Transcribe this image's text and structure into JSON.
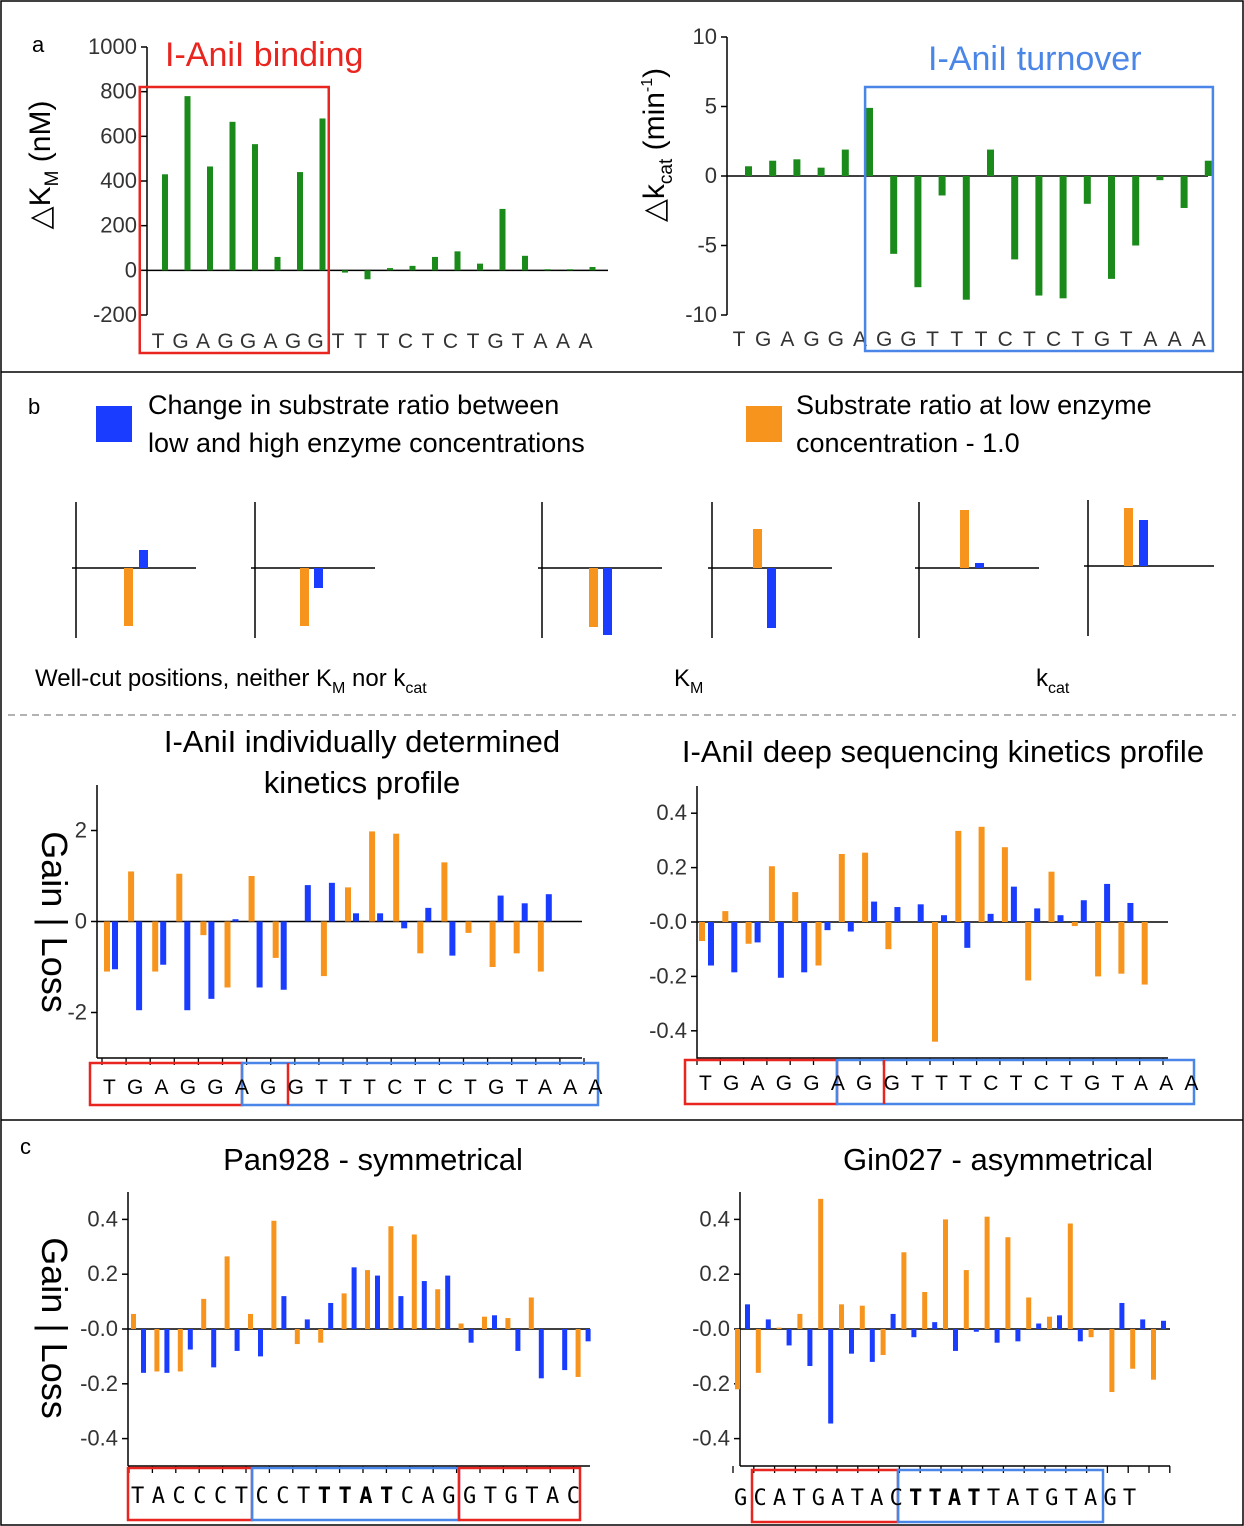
{
  "panel_labels": {
    "a": "a",
    "b": "b",
    "c": "c"
  },
  "colors": {
    "green": "#1a8a1a",
    "orange": "#f7941d",
    "blue": "#1a3cff",
    "red_box": "#e8251f",
    "blue_box": "#4a86e8",
    "title_red": "#e8251f",
    "title_blue": "#4a86e8",
    "divider": "#999999"
  },
  "legend": {
    "blue_line1": "Change in substrate ratio between",
    "blue_line2": "low and high enzyme concentrations",
    "orange_line1": "Substrate ratio at low enzyme",
    "orange_line2": "concentration - 1.0"
  },
  "schematic_labels": {
    "wellcut_main": "Well-cut positions, neither K",
    "wellcut_sub1": "M",
    "wellcut_mid": " nor k",
    "wellcut_sub2": "cat",
    "km_main": "K",
    "km_sub": "M",
    "kcat_main": "k",
    "kcat_sub": "cat"
  },
  "gain_loss_label": "Gain | Loss",
  "chart_data": [
    {
      "id": "a-left",
      "type": "bar",
      "title": "I-AniI binding",
      "ylabel_pre": "△K",
      "ylabel_sub": "M",
      "ylabel_post": " (nM)",
      "ylim": [
        -200,
        1000
      ],
      "yticks": [
        "-200",
        "0",
        "200",
        "400",
        "600",
        "800",
        "1000"
      ],
      "categories": [
        "T",
        "G",
        "A",
        "G",
        "G",
        "A",
        "G",
        "G",
        "T",
        "T",
        "T",
        "C",
        "T",
        "C",
        "T",
        "G",
        "T",
        "A",
        "A",
        "A"
      ],
      "values": [
        430,
        780,
        465,
        665,
        565,
        60,
        440,
        680,
        -10,
        -40,
        10,
        20,
        60,
        85,
        30,
        275,
        65,
        5,
        5,
        15
      ],
      "box": {
        "from": 0,
        "to": 7,
        "color": "red"
      }
    },
    {
      "id": "a-right",
      "type": "bar",
      "title": "I-AniI turnover",
      "ylabel_pre": "△k",
      "ylabel_sub": "cat",
      "ylabel_post": " (min",
      "ylabel_sup": "-1",
      "ylabel_end": ")",
      "ylim": [
        -10,
        10
      ],
      "yticks": [
        "-10",
        "-5",
        "0",
        "5",
        "10"
      ],
      "categories": [
        "T",
        "G",
        "A",
        "G",
        "G",
        "A",
        "G",
        "G",
        "T",
        "T",
        "T",
        "C",
        "T",
        "C",
        "T",
        "G",
        "T",
        "A",
        "A",
        "A"
      ],
      "values": [
        0.7,
        1.1,
        1.2,
        0.6,
        1.9,
        4.9,
        -5.6,
        -8.0,
        -1.4,
        -8.9,
        1.9,
        -6.0,
        -8.6,
        -8.8,
        -2.0,
        -7.4,
        -5.0,
        -0.3,
        -2.3,
        1.1
      ],
      "box": {
        "from": 6,
        "to": 19,
        "color": "blue"
      }
    },
    {
      "id": "b-individual",
      "type": "bar",
      "title_line1": "I-AniI individually determined",
      "title_line2": "kinetics profile",
      "ylim": [
        -3,
        3
      ],
      "yticks": [
        "-2",
        "0",
        "2"
      ],
      "categories": [
        "T",
        "G",
        "A",
        "G",
        "G",
        "A",
        "G",
        "G",
        "T",
        "T",
        "T",
        "C",
        "T",
        "C",
        "T",
        "G",
        "T",
        "A",
        "A",
        "A"
      ],
      "series": [
        {
          "name": "Substrate ratio at low enzyme concentration - 1.0",
          "color": "orange",
          "values": [
            -1.1,
            1.1,
            -1.1,
            1.05,
            -0.3,
            -1.45,
            1.0,
            -0.8,
            0,
            -1.2,
            0.75,
            1.98,
            1.93,
            -0.7,
            1.3,
            -0.25,
            -1.0,
            -0.7,
            -1.1,
            0
          ]
        },
        {
          "name": "Change in substrate ratio between low and high enzyme concentrations",
          "color": "blue",
          "values": [
            -1.05,
            -1.95,
            -0.95,
            -1.95,
            -1.7,
            0.05,
            -1.45,
            -1.5,
            0.8,
            0.85,
            0.18,
            0.18,
            -0.15,
            0.3,
            -0.75,
            0,
            0.57,
            0.4,
            0.6,
            0
          ]
        }
      ],
      "seq_left": "TGAGGA",
      "seq_mid": "GG",
      "seq_right": "TTTCTCTGTAAA"
    },
    {
      "id": "b-deep",
      "type": "bar",
      "title": "I-AniI deep sequencing kinetics profile",
      "ylim": [
        -0.5,
        0.5
      ],
      "yticks": [
        "-0.4",
        "-0.2",
        "-0.0",
        "0.2",
        "0.4"
      ],
      "categories": [
        "T",
        "G",
        "A",
        "G",
        "G",
        "A",
        "G",
        "G",
        "T",
        "T",
        "T",
        "C",
        "T",
        "C",
        "T",
        "G",
        "T",
        "A",
        "A",
        "A"
      ],
      "series": [
        {
          "name": "Substrate ratio at low enzyme concentration - 1.0",
          "color": "orange",
          "values": [
            -0.07,
            0.04,
            -0.08,
            0.205,
            0.11,
            -0.16,
            0.25,
            0.255,
            -0.1,
            0,
            -0.44,
            0.335,
            0.35,
            0.275,
            -0.215,
            0.185,
            -0.015,
            -0.2,
            -0.19,
            -0.23
          ]
        },
        {
          "name": "Change in substrate ratio between low and high enzyme concentrations",
          "color": "blue",
          "values": [
            -0.16,
            -0.185,
            -0.075,
            -0.205,
            -0.185,
            -0.03,
            -0.035,
            0.075,
            0.055,
            0.065,
            0.025,
            -0.095,
            0.03,
            0.13,
            0.05,
            0.025,
            0.08,
            0.14,
            0.07,
            0
          ]
        }
      ],
      "seq_left": "TGAGGA",
      "seq_mid": "GG",
      "seq_right": "TTTCTCTGTAAA"
    },
    {
      "id": "c-pan928",
      "type": "bar",
      "title": "Pan928 - symmetrical",
      "ylim": [
        -0.5,
        0.5
      ],
      "yticks": [
        "-0.4",
        "-0.2",
        "-0.0",
        "0.2",
        "0.4"
      ],
      "series": [
        {
          "name": "Substrate ratio at low enzyme concentration - 1.0",
          "color": "orange",
          "values": [
            0.055,
            -0.155,
            -0.155,
            0.11,
            0.265,
            0.055,
            0.395,
            -0.055,
            -0.05,
            0.13,
            0.215,
            0.375,
            0.345,
            0.145,
            0.02,
            0.045,
            0.04,
            0.115,
            0,
            -0.175
          ]
        },
        {
          "name": "Change in substrate ratio between low and high enzyme concentrations",
          "color": "blue",
          "values": [
            -0.16,
            -0.16,
            -0.075,
            -0.14,
            -0.08,
            -0.1,
            0.12,
            0.035,
            0.095,
            0.225,
            0.195,
            0.12,
            0.175,
            0.195,
            -0.05,
            0.05,
            -0.08,
            -0.18,
            -0.15,
            -0.045
          ]
        }
      ],
      "seq_a": "TACCCT",
      "seq_b": "CCT",
      "seq_bold": "TTAT",
      "seq_c": "CAG",
      "seq_d": "GTGTAC"
    },
    {
      "id": "c-gin027",
      "type": "bar",
      "title": "Gin027 - asymmetrical",
      "ylim": [
        -0.5,
        0.5
      ],
      "yticks": [
        "-0.4",
        "-0.2",
        "-0.0",
        "0.2",
        "0.4"
      ],
      "series": [
        {
          "name": "Substrate ratio at low enzyme concentration - 1.0",
          "color": "orange",
          "values": [
            -0.22,
            -0.16,
            0.005,
            0.055,
            0.475,
            0.09,
            0.085,
            -0.095,
            0.28,
            0.135,
            0.4,
            0.215,
            0.41,
            0.335,
            0.115,
            0.045,
            0.385,
            -0.03,
            -0.23,
            -0.145,
            -0.185
          ]
        },
        {
          "name": "Change in substrate ratio between low and high enzyme concentrations",
          "color": "blue",
          "values": [
            0.09,
            0.035,
            -0.06,
            -0.135,
            -0.345,
            -0.09,
            -0.12,
            0.055,
            -0.03,
            0.025,
            -0.08,
            -0.01,
            -0.05,
            -0.045,
            0.02,
            0.05,
            -0.045,
            0,
            0.095,
            0.035,
            0.03
          ]
        }
      ],
      "seq_a": "G",
      "seq_b": "CATGATA",
      "seq_c": "C",
      "seq_bold": "TTAT",
      "seq_d": "TATGTA",
      "seq_e": "GT"
    }
  ]
}
